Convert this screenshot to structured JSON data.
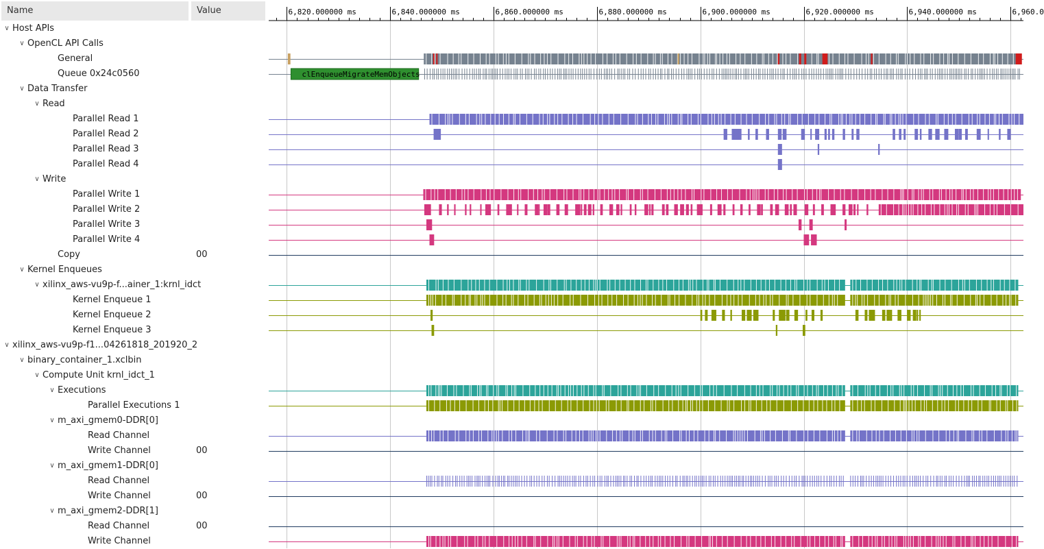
{
  "header": {
    "name_col": "Name",
    "value_col": "Value"
  },
  "time_axis": {
    "unit": "ms",
    "range_ms": [
      6816.5,
      6962.5
    ],
    "major_ticks_ms": [
      6820,
      6840,
      6860,
      6880,
      6900,
      6920,
      6940,
      6960
    ],
    "major_labels": [
      "6,820.000000 ms",
      "6,840.000000 ms",
      "6,860.000000 ms",
      "6,880.000000 ms",
      "6,900.000000 ms",
      "6,920.000000 ms",
      "6,940.000000 ms",
      "6,960.000000 ms"
    ]
  },
  "colors": {
    "gray": "#76828f",
    "red": "#d01c1c",
    "green": "#2f8f2f",
    "blue": "#7473c8",
    "pink": "#d4387f",
    "teal": "#2ca49a",
    "olive": "#8b9a04",
    "tan": "#c8a060"
  },
  "event_label": "clEnqueueMigrateMemObjects",
  "rows": [
    {
      "label": "Host APIs",
      "level": 0,
      "chevron": true,
      "value": ""
    },
    {
      "label": "OpenCL API Calls",
      "level": 1,
      "chevron": true,
      "value": ""
    },
    {
      "label": "General",
      "level": 3,
      "chevron": false,
      "value": ""
    },
    {
      "label": "Queue 0x24c0560",
      "level": 3,
      "chevron": false,
      "value": ""
    },
    {
      "label": "Data Transfer",
      "level": 1,
      "chevron": true,
      "value": ""
    },
    {
      "label": "Read",
      "level": 2,
      "chevron": true,
      "value": ""
    },
    {
      "label": "Parallel Read 1",
      "level": 4,
      "chevron": false,
      "value": ""
    },
    {
      "label": "Parallel Read 2",
      "level": 4,
      "chevron": false,
      "value": ""
    },
    {
      "label": "Parallel Read 3",
      "level": 4,
      "chevron": false,
      "value": ""
    },
    {
      "label": "Parallel Read 4",
      "level": 4,
      "chevron": false,
      "value": ""
    },
    {
      "label": "Write",
      "level": 2,
      "chevron": true,
      "value": ""
    },
    {
      "label": "Parallel Write 1",
      "level": 4,
      "chevron": false,
      "value": ""
    },
    {
      "label": "Parallel Write 2",
      "level": 4,
      "chevron": false,
      "value": ""
    },
    {
      "label": "Parallel Write 3",
      "level": 4,
      "chevron": false,
      "value": ""
    },
    {
      "label": "Parallel Write 4",
      "level": 4,
      "chevron": false,
      "value": ""
    },
    {
      "label": "Copy",
      "level": 3,
      "chevron": false,
      "value": "00"
    },
    {
      "label": "Kernel Enqueues",
      "level": 1,
      "chevron": true,
      "value": ""
    },
    {
      "label": "xilinx_aws-vu9p-f...ainer_1:krnl_idct",
      "level": 2,
      "chevron": true,
      "value": ""
    },
    {
      "label": "Kernel Enqueue 1",
      "level": 4,
      "chevron": false,
      "value": ""
    },
    {
      "label": "Kernel Enqueue 2",
      "level": 4,
      "chevron": false,
      "value": ""
    },
    {
      "label": "Kernel Enqueue 3",
      "level": 4,
      "chevron": false,
      "value": ""
    },
    {
      "label": "xilinx_aws-vu9p-f1...04261818_201920_2",
      "level": 0,
      "chevron": true,
      "value": ""
    },
    {
      "label": "binary_container_1.xclbin",
      "level": 1,
      "chevron": true,
      "value": ""
    },
    {
      "label": "Compute Unit krnl_idct_1",
      "level": 2,
      "chevron": true,
      "value": ""
    },
    {
      "label": "Executions",
      "level": 3,
      "chevron": true,
      "value": ""
    },
    {
      "label": "Parallel Executions 1",
      "level": 5,
      "chevron": false,
      "value": ""
    },
    {
      "label": "m_axi_gmem0-DDR[0]",
      "level": 3,
      "chevron": true,
      "value": ""
    },
    {
      "label": "Read Channel",
      "level": 5,
      "chevron": false,
      "value": ""
    },
    {
      "label": "Write Channel",
      "level": 5,
      "chevron": false,
      "value": "00"
    },
    {
      "label": "m_axi_gmem1-DDR[0]",
      "level": 3,
      "chevron": true,
      "value": ""
    },
    {
      "label": "Read Channel",
      "level": 5,
      "chevron": false,
      "value": ""
    },
    {
      "label": "Write Channel",
      "level": 5,
      "chevron": false,
      "value": "00"
    },
    {
      "label": "m_axi_gmem2-DDR[1]",
      "level": 3,
      "chevron": true,
      "value": ""
    },
    {
      "label": "Read Channel",
      "level": 5,
      "chevron": false,
      "value": "00"
    },
    {
      "label": "Write Channel",
      "level": 5,
      "chevron": false,
      "value": ""
    }
  ],
  "tracks": [
    {
      "row": 2,
      "line": "#76828f",
      "segments": [
        {
          "start_ms": 6820.2,
          "end_ms": 6820.7,
          "color": "tan"
        },
        {
          "start_ms": 6846.5,
          "end_ms": 6962.0,
          "color": "gray",
          "pattern": "dense"
        },
        {
          "start_ms": 6848.3,
          "end_ms": 6848.5,
          "color": "red"
        },
        {
          "start_ms": 6848.9,
          "end_ms": 6849.1,
          "color": "red"
        },
        {
          "start_ms": 6915.0,
          "end_ms": 6915.3,
          "color": "red"
        },
        {
          "start_ms": 6919.1,
          "end_ms": 6919.5,
          "color": "red"
        },
        {
          "start_ms": 6920.1,
          "end_ms": 6920.5,
          "color": "red"
        },
        {
          "start_ms": 6923.6,
          "end_ms": 6924.6,
          "color": "red"
        },
        {
          "start_ms": 6933.0,
          "end_ms": 6933.3,
          "color": "red"
        },
        {
          "start_ms": 6961.0,
          "end_ms": 6962.2,
          "color": "red"
        },
        {
          "start_ms": 6895.6,
          "end_ms": 6895.9,
          "color": "tan"
        }
      ]
    },
    {
      "row": 3,
      "line": "#76828f",
      "segments": [
        {
          "start_ms": 6820.8,
          "end_ms": 6845.5,
          "color": "green",
          "text": true
        },
        {
          "start_ms": 6846.6,
          "end_ms": 6962.0,
          "color": "gray",
          "pattern": "thin"
        }
      ]
    },
    {
      "row": 6,
      "line": "#7473c8",
      "segments": [
        {
          "start_ms": 6847.6,
          "end_ms": 6962.5,
          "color": "blue",
          "pattern": "dense"
        }
      ]
    },
    {
      "row": 7,
      "line": "#7473c8",
      "segments": [
        {
          "start_ms": 6848.4,
          "end_ms": 6849.8,
          "color": "blue"
        },
        {
          "start_ms": 6904.5,
          "end_ms": 6913.0,
          "color": "blue",
          "pattern": "sparse"
        },
        {
          "start_ms": 6915.0,
          "end_ms": 6916.2,
          "color": "blue",
          "pattern": "sparse"
        },
        {
          "start_ms": 6919.5,
          "end_ms": 6922.2,
          "color": "blue",
          "pattern": "sparse"
        },
        {
          "start_ms": 6922.2,
          "end_ms": 6931.3,
          "color": "blue",
          "pattern": "sparse"
        },
        {
          "start_ms": 6937.2,
          "end_ms": 6960.2,
          "color": "blue",
          "pattern": "sparse"
        }
      ]
    },
    {
      "row": 8,
      "line": "#7473c8",
      "segments": [
        {
          "start_ms": 6915.0,
          "end_ms": 6915.8,
          "color": "blue"
        },
        {
          "start_ms": 6922.7,
          "end_ms": 6923.0,
          "color": "blue"
        },
        {
          "start_ms": 6934.4,
          "end_ms": 6934.7,
          "color": "blue"
        }
      ]
    },
    {
      "row": 9,
      "line": "#7473c8",
      "segments": [
        {
          "start_ms": 6915.0,
          "end_ms": 6915.8,
          "color": "blue"
        }
      ]
    },
    {
      "row": 11,
      "line": "#d4387f",
      "segments": [
        {
          "start_ms": 6846.4,
          "end_ms": 6962.0,
          "color": "pink",
          "pattern": "dense"
        }
      ]
    },
    {
      "row": 12,
      "line": "#d4387f",
      "segments": [
        {
          "start_ms": 6846.6,
          "end_ms": 6850.0,
          "color": "pink",
          "pattern": "sparse"
        },
        {
          "start_ms": 6851.0,
          "end_ms": 6912.0,
          "color": "pink",
          "pattern": "sparse"
        },
        {
          "start_ms": 6913.5,
          "end_ms": 6932.5,
          "color": "pink",
          "pattern": "sparse"
        },
        {
          "start_ms": 6934.5,
          "end_ms": 6962.5,
          "color": "pink",
          "pattern": "dense"
        }
      ]
    },
    {
      "row": 13,
      "line": "#d4387f",
      "segments": [
        {
          "start_ms": 6847.0,
          "end_ms": 6848.1,
          "color": "pink"
        },
        {
          "start_ms": 6919.0,
          "end_ms": 6922.2,
          "color": "pink",
          "pattern": "sparse"
        },
        {
          "start_ms": 6927.9,
          "end_ms": 6928.3,
          "color": "pink"
        }
      ]
    },
    {
      "row": 14,
      "line": "#d4387f",
      "segments": [
        {
          "start_ms": 6847.6,
          "end_ms": 6848.5,
          "color": "pink"
        },
        {
          "start_ms": 6920.0,
          "end_ms": 6922.8,
          "color": "pink",
          "pattern": "sparse"
        }
      ]
    },
    {
      "row": 15,
      "line": "#1f3a5f",
      "segments": []
    },
    {
      "row": 17,
      "line": "#2ca49a",
      "segments": [
        {
          "start_ms": 6847.0,
          "end_ms": 6928.0,
          "color": "teal",
          "pattern": "dense"
        },
        {
          "start_ms": 6929.0,
          "end_ms": 6961.5,
          "color": "teal",
          "pattern": "dense"
        }
      ]
    },
    {
      "row": 18,
      "line": "#8b9a04",
      "segments": [
        {
          "start_ms": 6847.0,
          "end_ms": 6928.0,
          "color": "olive",
          "pattern": "dense"
        },
        {
          "start_ms": 6929.0,
          "end_ms": 6961.5,
          "color": "olive",
          "pattern": "dense"
        }
      ]
    },
    {
      "row": 19,
      "line": "#8b9a04",
      "segments": [
        {
          "start_ms": 6847.8,
          "end_ms": 6849.5,
          "color": "olive",
          "pattern": "sparse"
        },
        {
          "start_ms": 6900.0,
          "end_ms": 6907.5,
          "color": "olive",
          "pattern": "sparse"
        },
        {
          "start_ms": 6908.0,
          "end_ms": 6911.0,
          "color": "olive",
          "pattern": "sparse"
        },
        {
          "start_ms": 6914.0,
          "end_ms": 6924.0,
          "color": "olive",
          "pattern": "sparse"
        },
        {
          "start_ms": 6930.0,
          "end_ms": 6944.0,
          "color": "olive",
          "pattern": "sparse"
        }
      ]
    },
    {
      "row": 20,
      "line": "#8b9a04",
      "segments": [
        {
          "start_ms": 6848.0,
          "end_ms": 6848.5,
          "color": "olive"
        },
        {
          "start_ms": 6914.6,
          "end_ms": 6914.9,
          "color": "olive"
        },
        {
          "start_ms": 6919.8,
          "end_ms": 6920.3,
          "color": "olive"
        }
      ]
    },
    {
      "row": 24,
      "line": "#2ca49a",
      "segments": [
        {
          "start_ms": 6847.0,
          "end_ms": 6928.0,
          "color": "teal",
          "pattern": "dense"
        },
        {
          "start_ms": 6929.0,
          "end_ms": 6961.5,
          "color": "teal",
          "pattern": "dense"
        }
      ]
    },
    {
      "row": 25,
      "line": "#8b9a04",
      "segments": [
        {
          "start_ms": 6847.0,
          "end_ms": 6928.0,
          "color": "olive",
          "pattern": "dense"
        },
        {
          "start_ms": 6929.0,
          "end_ms": 6961.5,
          "color": "olive",
          "pattern": "dense"
        }
      ]
    },
    {
      "row": 27,
      "line": "#7473c8",
      "segments": [
        {
          "start_ms": 6847.0,
          "end_ms": 6928.0,
          "color": "blue",
          "pattern": "dense"
        },
        {
          "start_ms": 6929.0,
          "end_ms": 6961.5,
          "color": "blue",
          "pattern": "dense"
        }
      ]
    },
    {
      "row": 28,
      "line": "#1f3a5f",
      "segments": []
    },
    {
      "row": 30,
      "line": "#7473c8",
      "segments": [
        {
          "start_ms": 6847.0,
          "end_ms": 6928.0,
          "color": "blue",
          "pattern": "thin"
        },
        {
          "start_ms": 6929.0,
          "end_ms": 6961.5,
          "color": "blue",
          "pattern": "thin"
        }
      ]
    },
    {
      "row": 31,
      "line": "#1f3a5f",
      "segments": []
    },
    {
      "row": 33,
      "line": "#1f3a5f",
      "segments": []
    },
    {
      "row": 34,
      "line": "#d4387f",
      "segments": [
        {
          "start_ms": 6847.0,
          "end_ms": 6928.0,
          "color": "pink",
          "pattern": "dense"
        },
        {
          "start_ms": 6929.0,
          "end_ms": 6961.5,
          "color": "pink",
          "pattern": "dense"
        }
      ]
    }
  ]
}
